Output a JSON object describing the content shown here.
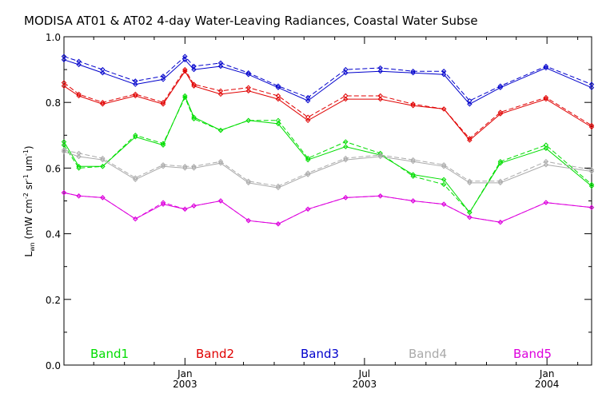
{
  "chart_data": {
    "type": "line",
    "title": "MODISA AT01 & AT02 4-day Water-Leaving Radiances, Coastal Water Subse",
    "ylabel_main": "L",
    "ylabel_sub": "wn",
    "ylabel_rest": " (mW cm",
    "ylabel_exp1": "-2",
    "ylabel_mid": " sr",
    "ylabel_exp2": "-1",
    "ylabel_end": " um",
    "ylabel_exp3": "-1",
    "ylabel_close": ")",
    "ylim": [
      0.0,
      1.0
    ],
    "yticks": [
      "0.0",
      "0.2",
      "0.4",
      "0.6",
      "0.8",
      "1.0"
    ],
    "x_start": "2002-09-01",
    "x_end": "2004-02-15",
    "x_ticks": [
      {
        "date": "2003-01-01",
        "label1": "Jan",
        "label2": "2003"
      },
      {
        "date": "2003-07-01",
        "label1": "Jul",
        "label2": "2003"
      },
      {
        "date": "2004-01-01",
        "label1": "Jan",
        "label2": "2004"
      }
    ],
    "x_minor_ticks": [
      "2002-10-01",
      "2002-11-01",
      "2002-12-01",
      "2003-02-01",
      "2003-03-01",
      "2003-04-01",
      "2003-05-01",
      "2003-06-01",
      "2003-08-01",
      "2003-09-01",
      "2003-10-01",
      "2003-11-01",
      "2003-12-01",
      "2004-02-01"
    ],
    "dates": [
      "2002-09-01",
      "2002-09-16",
      "2002-10-10",
      "2002-11-12",
      "2002-12-10",
      "2003-01-01",
      "2003-01-10",
      "2003-02-06",
      "2003-03-06",
      "2003-04-05",
      "2003-05-05",
      "2003-06-12",
      "2003-07-17",
      "2003-08-19",
      "2003-09-19",
      "2003-10-15",
      "2003-11-15",
      "2003-12-31",
      "2004-02-15"
    ],
    "series": [
      {
        "name": "Band1",
        "color": "#00dd00",
        "at01": [
          0.68,
          0.605,
          0.605,
          0.695,
          0.67,
          0.82,
          0.755,
          0.715,
          0.745,
          0.735,
          0.625,
          0.665,
          0.64,
          0.58,
          0.565,
          0.465,
          0.615,
          0.66,
          0.545
        ],
        "at02": [
          0.67,
          0.6,
          0.605,
          0.7,
          0.675,
          0.815,
          0.75,
          0.715,
          0.745,
          0.745,
          0.63,
          0.68,
          0.645,
          0.575,
          0.55,
          0.465,
          0.62,
          0.67,
          0.55
        ]
      },
      {
        "name": "Band2",
        "color": "#e00000",
        "at01": [
          0.85,
          0.82,
          0.795,
          0.82,
          0.795,
          0.895,
          0.85,
          0.825,
          0.835,
          0.81,
          0.745,
          0.81,
          0.81,
          0.79,
          0.78,
          0.685,
          0.765,
          0.81,
          0.725
        ],
        "at02": [
          0.86,
          0.825,
          0.8,
          0.825,
          0.8,
          0.9,
          0.855,
          0.835,
          0.845,
          0.82,
          0.755,
          0.82,
          0.82,
          0.795,
          0.78,
          0.69,
          0.77,
          0.815,
          0.73
        ]
      },
      {
        "name": "Band3",
        "color": "#0000cc",
        "at01": [
          0.93,
          0.915,
          0.89,
          0.855,
          0.87,
          0.93,
          0.9,
          0.91,
          0.885,
          0.845,
          0.805,
          0.89,
          0.895,
          0.89,
          0.885,
          0.795,
          0.845,
          0.905,
          0.845
        ],
        "at02": [
          0.94,
          0.925,
          0.9,
          0.865,
          0.88,
          0.94,
          0.91,
          0.92,
          0.89,
          0.85,
          0.815,
          0.9,
          0.905,
          0.895,
          0.895,
          0.805,
          0.85,
          0.91,
          0.855
        ]
      },
      {
        "name": "Band4",
        "color": "#aaaaaa",
        "at01": [
          0.65,
          0.635,
          0.625,
          0.565,
          0.605,
          0.6,
          0.6,
          0.615,
          0.555,
          0.54,
          0.58,
          0.625,
          0.635,
          0.62,
          0.605,
          0.555,
          0.555,
          0.61,
          0.59
        ],
        "at02": [
          0.655,
          0.645,
          0.63,
          0.57,
          0.61,
          0.605,
          0.605,
          0.62,
          0.56,
          0.545,
          0.585,
          0.63,
          0.64,
          0.625,
          0.61,
          0.56,
          0.56,
          0.62,
          0.595
        ]
      },
      {
        "name": "Band5",
        "color": "#dd00dd",
        "at01": [
          0.525,
          0.515,
          0.51,
          0.445,
          0.49,
          0.475,
          0.485,
          0.5,
          0.44,
          0.43,
          0.475,
          0.51,
          0.515,
          0.5,
          0.49,
          0.45,
          0.435,
          0.495,
          0.48
        ],
        "at02": [
          0.525,
          0.515,
          0.51,
          0.445,
          0.495,
          0.475,
          0.485,
          0.5,
          0.44,
          0.43,
          0.475,
          0.51,
          0.515,
          0.5,
          0.49,
          0.45,
          0.435,
          0.495,
          0.48
        ]
      }
    ],
    "grid": false,
    "legend_position": "bottom-inside"
  }
}
